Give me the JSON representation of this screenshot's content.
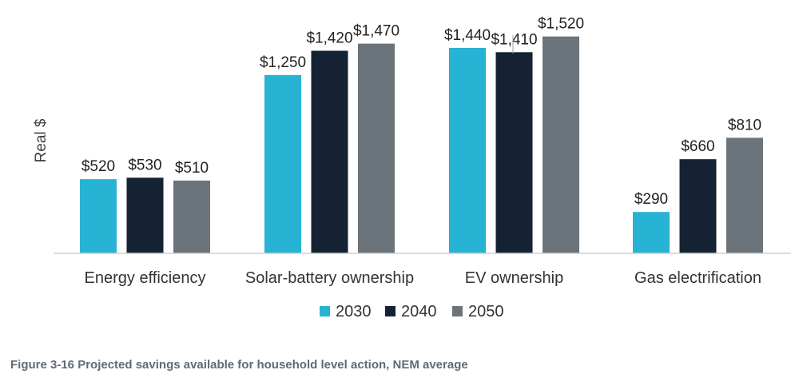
{
  "caption": "Figure 3-16 Projected savings available for household level action, NEM average",
  "chart_data": {
    "type": "bar",
    "title": "",
    "xlabel": "",
    "ylabel": "Real $",
    "ylim": [
      0,
      1600
    ],
    "grid": false,
    "legend_position": "bottom",
    "categories": [
      "Energy efficiency",
      "Solar-battery ownership",
      "EV ownership",
      "Gas electrification"
    ],
    "series": [
      {
        "name": "2030",
        "color": "#26b3d4",
        "values": [
          520,
          1250,
          1440,
          290
        ],
        "labels": [
          "$520",
          "$1,250",
          "$1,440",
          "$290"
        ]
      },
      {
        "name": "2040",
        "color": "#142233",
        "values": [
          530,
          1420,
          1410,
          660
        ],
        "labels": [
          "$530",
          "$1,420",
          "$1,410",
          "$660"
        ]
      },
      {
        "name": "2050",
        "color": "#6b747a",
        "values": [
          510,
          1470,
          1520,
          810
        ],
        "labels": [
          "$510",
          "$1,470",
          "$1,520",
          "$810"
        ]
      }
    ]
  }
}
